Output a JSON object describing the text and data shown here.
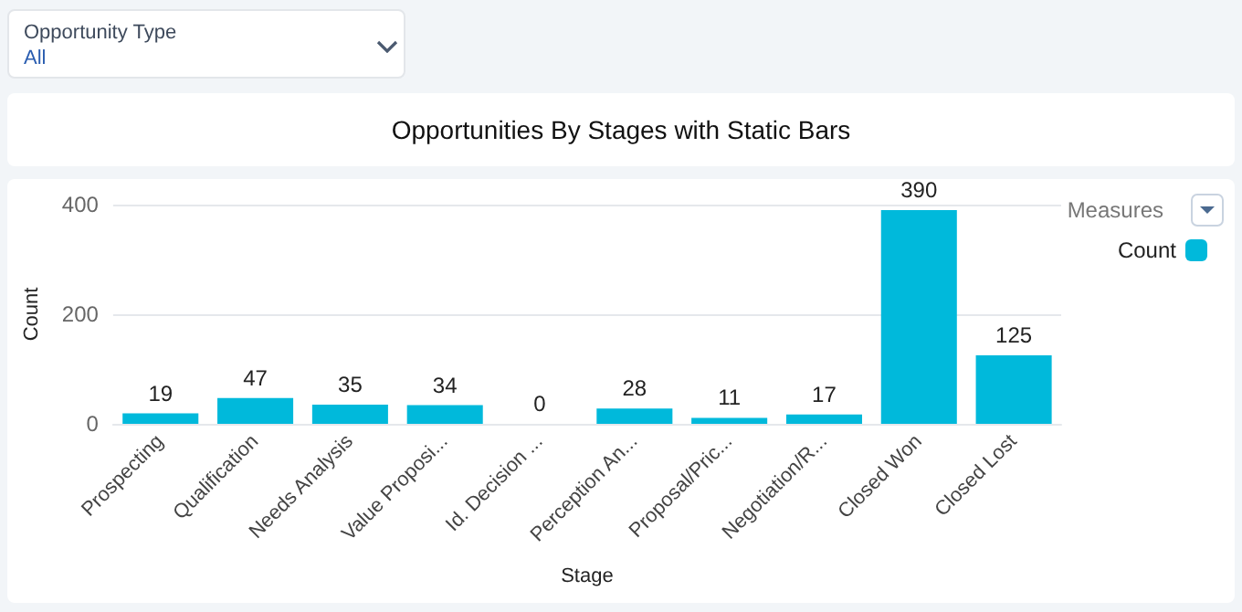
{
  "chart_data": {
    "type": "bar",
    "title": "Opportunities By Stages with Static Bars",
    "categories": [
      "Prospecting",
      "Qualification",
      "Needs Analysis",
      "Value Proposi...",
      "Id. Decision ...",
      "Perception An...",
      "Proposal/Pric...",
      "Negotiation/R...",
      "Closed Won",
      "Closed Lost"
    ],
    "series": [
      {
        "name": "Count",
        "color": "#00b9db",
        "values": [
          19,
          47,
          35,
          34,
          0,
          28,
          11,
          17,
          390,
          125
        ]
      }
    ],
    "xlabel": "Stage",
    "ylabel": "Count",
    "legend_title": "Measures",
    "ylim": [
      0,
      400
    ],
    "yticks": [
      0,
      200,
      400
    ],
    "grid": "y",
    "legend": "top right",
    "data_labels": true,
    "annotations": [
      "Opportunity Type",
      "All"
    ]
  }
}
